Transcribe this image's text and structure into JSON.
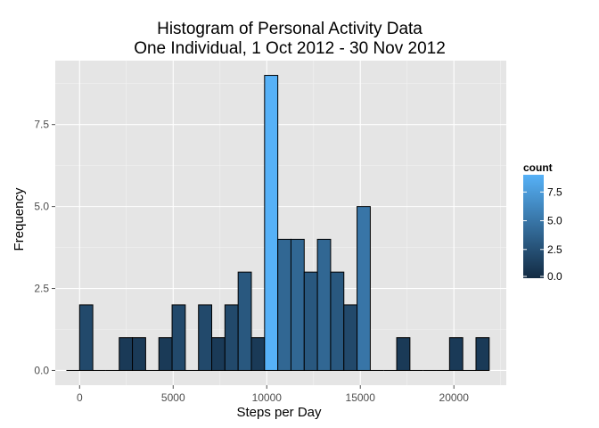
{
  "chart_data": {
    "type": "bar",
    "title_lines": [
      "Histogram of Personal Activity Data",
      "One Individual, 1 Oct 2012 - 30 Nov 2012"
    ],
    "xlabel": "Steps per Day",
    "ylabel": "Frequency",
    "xlim": [
      -1300,
      22800
    ],
    "ylim": [
      -0.45,
      9.45
    ],
    "x_ticks": [
      0,
      5000,
      10000,
      15000,
      20000
    ],
    "x_tick_labels": [
      "0",
      "5000",
      "10000",
      "15000",
      "20000"
    ],
    "y_ticks": [
      0,
      2.5,
      5,
      7.5
    ],
    "y_tick_labels": [
      "0.0",
      "2.5",
      "5.0",
      "7.5"
    ],
    "bin_width": 706,
    "bins": [
      {
        "x": -353,
        "count": 0
      },
      {
        "x": 353,
        "count": 2
      },
      {
        "x": 1059,
        "count": 0
      },
      {
        "x": 1765,
        "count": 0
      },
      {
        "x": 2471,
        "count": 1
      },
      {
        "x": 3177,
        "count": 1
      },
      {
        "x": 3883,
        "count": 0
      },
      {
        "x": 4589,
        "count": 1
      },
      {
        "x": 5295,
        "count": 2
      },
      {
        "x": 6001,
        "count": 0
      },
      {
        "x": 6707,
        "count": 2
      },
      {
        "x": 7413,
        "count": 1
      },
      {
        "x": 8119,
        "count": 2
      },
      {
        "x": 8825,
        "count": 3
      },
      {
        "x": 9531,
        "count": 1
      },
      {
        "x": 10237,
        "count": 9
      },
      {
        "x": 10943,
        "count": 4
      },
      {
        "x": 11649,
        "count": 4
      },
      {
        "x": 12355,
        "count": 3
      },
      {
        "x": 13061,
        "count": 4
      },
      {
        "x": 13767,
        "count": 3
      },
      {
        "x": 14473,
        "count": 2
      },
      {
        "x": 15179,
        "count": 5
      },
      {
        "x": 15885,
        "count": 0
      },
      {
        "x": 16591,
        "count": 0
      },
      {
        "x": 17297,
        "count": 1
      },
      {
        "x": 18003,
        "count": 0
      },
      {
        "x": 18709,
        "count": 0
      },
      {
        "x": 19415,
        "count": 0
      },
      {
        "x": 20121,
        "count": 1
      },
      {
        "x": 20827,
        "count": 0
      },
      {
        "x": 21533,
        "count": 1
      }
    ],
    "grid": true,
    "legend": {
      "title": "count",
      "placement": "right",
      "range": [
        0,
        9
      ],
      "ticks": [
        0,
        2.5,
        5,
        7.5
      ],
      "tick_labels": [
        "0.0",
        "2.5",
        "5.0",
        "7.5"
      ],
      "color_low": "#132B43",
      "color_high": "#56B1F7"
    },
    "panel_color": "#e5e5e5",
    "grid_color": "#ffffff",
    "bar_outline": "#000000"
  }
}
